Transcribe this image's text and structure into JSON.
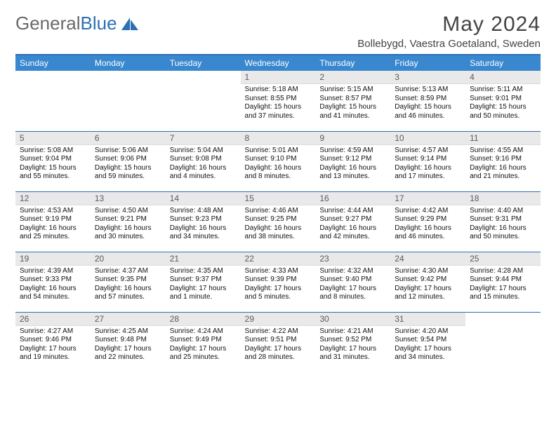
{
  "brand": {
    "part1": "General",
    "part2": "Blue"
  },
  "title": "May 2024",
  "location": "Bollebygd, Vaestra Goetaland, Sweden",
  "colors": {
    "header_bg": "#3887cf",
    "border": "#2d6fb5",
    "daynum_bg": "#e9e9e9",
    "text": "#000000",
    "title_text": "#444444"
  },
  "weekdays": [
    "Sunday",
    "Monday",
    "Tuesday",
    "Wednesday",
    "Thursday",
    "Friday",
    "Saturday"
  ],
  "weeks": [
    [
      null,
      null,
      null,
      {
        "n": "1",
        "sr": "5:18 AM",
        "ss": "8:55 PM",
        "dl": "15 hours and 37 minutes."
      },
      {
        "n": "2",
        "sr": "5:15 AM",
        "ss": "8:57 PM",
        "dl": "15 hours and 41 minutes."
      },
      {
        "n": "3",
        "sr": "5:13 AM",
        "ss": "8:59 PM",
        "dl": "15 hours and 46 minutes."
      },
      {
        "n": "4",
        "sr": "5:11 AM",
        "ss": "9:01 PM",
        "dl": "15 hours and 50 minutes."
      }
    ],
    [
      {
        "n": "5",
        "sr": "5:08 AM",
        "ss": "9:04 PM",
        "dl": "15 hours and 55 minutes."
      },
      {
        "n": "6",
        "sr": "5:06 AM",
        "ss": "9:06 PM",
        "dl": "15 hours and 59 minutes."
      },
      {
        "n": "7",
        "sr": "5:04 AM",
        "ss": "9:08 PM",
        "dl": "16 hours and 4 minutes."
      },
      {
        "n": "8",
        "sr": "5:01 AM",
        "ss": "9:10 PM",
        "dl": "16 hours and 8 minutes."
      },
      {
        "n": "9",
        "sr": "4:59 AM",
        "ss": "9:12 PM",
        "dl": "16 hours and 13 minutes."
      },
      {
        "n": "10",
        "sr": "4:57 AM",
        "ss": "9:14 PM",
        "dl": "16 hours and 17 minutes."
      },
      {
        "n": "11",
        "sr": "4:55 AM",
        "ss": "9:16 PM",
        "dl": "16 hours and 21 minutes."
      }
    ],
    [
      {
        "n": "12",
        "sr": "4:53 AM",
        "ss": "9:19 PM",
        "dl": "16 hours and 25 minutes."
      },
      {
        "n": "13",
        "sr": "4:50 AM",
        "ss": "9:21 PM",
        "dl": "16 hours and 30 minutes."
      },
      {
        "n": "14",
        "sr": "4:48 AM",
        "ss": "9:23 PM",
        "dl": "16 hours and 34 minutes."
      },
      {
        "n": "15",
        "sr": "4:46 AM",
        "ss": "9:25 PM",
        "dl": "16 hours and 38 minutes."
      },
      {
        "n": "16",
        "sr": "4:44 AM",
        "ss": "9:27 PM",
        "dl": "16 hours and 42 minutes."
      },
      {
        "n": "17",
        "sr": "4:42 AM",
        "ss": "9:29 PM",
        "dl": "16 hours and 46 minutes."
      },
      {
        "n": "18",
        "sr": "4:40 AM",
        "ss": "9:31 PM",
        "dl": "16 hours and 50 minutes."
      }
    ],
    [
      {
        "n": "19",
        "sr": "4:39 AM",
        "ss": "9:33 PM",
        "dl": "16 hours and 54 minutes."
      },
      {
        "n": "20",
        "sr": "4:37 AM",
        "ss": "9:35 PM",
        "dl": "16 hours and 57 minutes."
      },
      {
        "n": "21",
        "sr": "4:35 AM",
        "ss": "9:37 PM",
        "dl": "17 hours and 1 minute."
      },
      {
        "n": "22",
        "sr": "4:33 AM",
        "ss": "9:39 PM",
        "dl": "17 hours and 5 minutes."
      },
      {
        "n": "23",
        "sr": "4:32 AM",
        "ss": "9:40 PM",
        "dl": "17 hours and 8 minutes."
      },
      {
        "n": "24",
        "sr": "4:30 AM",
        "ss": "9:42 PM",
        "dl": "17 hours and 12 minutes."
      },
      {
        "n": "25",
        "sr": "4:28 AM",
        "ss": "9:44 PM",
        "dl": "17 hours and 15 minutes."
      }
    ],
    [
      {
        "n": "26",
        "sr": "4:27 AM",
        "ss": "9:46 PM",
        "dl": "17 hours and 19 minutes."
      },
      {
        "n": "27",
        "sr": "4:25 AM",
        "ss": "9:48 PM",
        "dl": "17 hours and 22 minutes."
      },
      {
        "n": "28",
        "sr": "4:24 AM",
        "ss": "9:49 PM",
        "dl": "17 hours and 25 minutes."
      },
      {
        "n": "29",
        "sr": "4:22 AM",
        "ss": "9:51 PM",
        "dl": "17 hours and 28 minutes."
      },
      {
        "n": "30",
        "sr": "4:21 AM",
        "ss": "9:52 PM",
        "dl": "17 hours and 31 minutes."
      },
      {
        "n": "31",
        "sr": "4:20 AM",
        "ss": "9:54 PM",
        "dl": "17 hours and 34 minutes."
      },
      null
    ]
  ],
  "labels": {
    "sunrise": "Sunrise:",
    "sunset": "Sunset:",
    "daylight": "Daylight:"
  }
}
